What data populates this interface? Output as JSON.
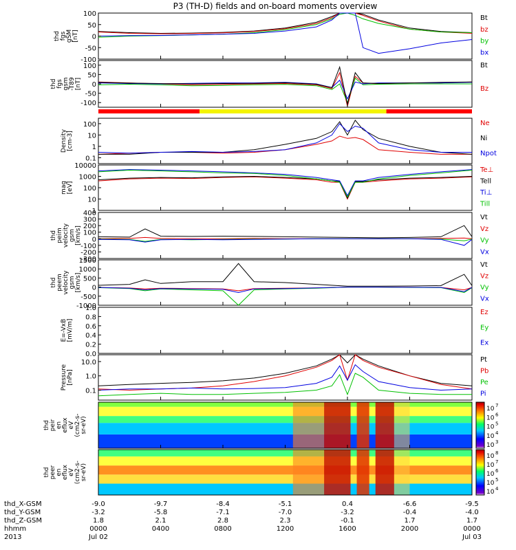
{
  "title": "P3 (TH-D) fields and on-board moments overview",
  "colors": {
    "black": "#000000",
    "red": "#e00000",
    "green": "#00c000",
    "blue": "#0000e0",
    "yellow": "#f4f400",
    "bar_red": "#ff0000"
  },
  "time_axis": {
    "rows": [
      {
        "label": "thd_X-GSM",
        "values": [
          "-9.0",
          "-9.7",
          "-8.4",
          "-5.1",
          "0.4",
          "-6.6",
          "-9.5"
        ]
      },
      {
        "label": "thd_Y-GSM",
        "values": [
          "-3.2",
          "-5.8",
          "-7.1",
          "-7.0",
          "-3.2",
          "-0.4",
          "-4.0"
        ]
      },
      {
        "label": "thd_Z-GSM",
        "values": [
          "1.8",
          "2.1",
          "2.8",
          "2.3",
          "-0.1",
          "1.7",
          "1.7"
        ]
      },
      {
        "label": "hhmm",
        "values": [
          "0000",
          "0400",
          "0800",
          "1200",
          "1600",
          "2000",
          "0000"
        ]
      },
      {
        "label": "2013",
        "values": [
          "Jul 02",
          "",
          "",
          "",
          "",
          "",
          "Jul 03"
        ]
      }
    ]
  },
  "chart_data": [
    {
      "type": "line",
      "panel": "fgs",
      "ylabel": [
        "thd",
        "fgs",
        "gSM",
        "[nT]"
      ],
      "yticks": [
        "100",
        "50",
        "0",
        "-50",
        "-100"
      ],
      "ylim": [
        -100,
        100
      ],
      "x": [
        0,
        2,
        4,
        6,
        8,
        10,
        12,
        14,
        15,
        15.5,
        16,
        16.5,
        17,
        18,
        20,
        22,
        24
      ],
      "series": [
        {
          "name": "Bt",
          "color": "#000000",
          "values": [
            20,
            15,
            12,
            13,
            16,
            22,
            35,
            60,
            85,
            100,
            100,
            100,
            95,
            70,
            35,
            20,
            15
          ]
        },
        {
          "name": "bz",
          "color": "#e00000",
          "values": [
            18,
            12,
            10,
            11,
            14,
            20,
            32,
            55,
            80,
            100,
            100,
            100,
            90,
            65,
            30,
            18,
            12
          ]
        },
        {
          "name": "by",
          "color": "#00c000",
          "values": [
            -5,
            0,
            2,
            5,
            8,
            15,
            28,
            50,
            75,
            95,
            100,
            90,
            75,
            55,
            30,
            18,
            15
          ]
        },
        {
          "name": "bx",
          "color": "#0000e0",
          "values": [
            0,
            2,
            3,
            5,
            8,
            12,
            22,
            40,
            70,
            100,
            100,
            100,
            -50,
            -75,
            -55,
            -30,
            -15
          ]
        }
      ],
      "legend": [
        {
          "label": "Bt",
          "color": "#000000"
        },
        {
          "label": "bz",
          "color": "#e00000"
        },
        {
          "label": "by",
          "color": "#00c000"
        },
        {
          "label": "bx",
          "color": "#0000e0"
        }
      ]
    },
    {
      "type": "line",
      "panel": "fgs-minus-T89",
      "ylabel": [
        "thd",
        "fgs",
        "gsm",
        "-T89",
        "[nT]"
      ],
      "yticks": [
        "100",
        "50",
        "0",
        "-50",
        "-100"
      ],
      "ylim": [
        -125,
        125
      ],
      "x": [
        0,
        2,
        4,
        6,
        8,
        10,
        12,
        14,
        15,
        15.5,
        16,
        16.5,
        17,
        18,
        20,
        22,
        24
      ],
      "series": [
        {
          "name": "Bz",
          "color": "#e00000",
          "values": [
            10,
            5,
            0,
            -5,
            -3,
            0,
            2,
            -5,
            -25,
            60,
            -120,
            40,
            5,
            0,
            5,
            5,
            10
          ]
        },
        {
          "name": "By",
          "color": "#00c000",
          "values": [
            -5,
            -2,
            -5,
            -10,
            -8,
            -5,
            -3,
            -10,
            -30,
            0,
            -100,
            30,
            -5,
            -2,
            0,
            0,
            0
          ]
        },
        {
          "name": "Bx",
          "color": "#0000e0",
          "values": [
            5,
            2,
            0,
            3,
            5,
            5,
            8,
            0,
            -20,
            20,
            -80,
            10,
            0,
            5,
            5,
            5,
            8
          ]
        },
        {
          "name": "Bt",
          "color": "#000000",
          "values": [
            8,
            4,
            2,
            0,
            2,
            3,
            6,
            -2,
            -20,
            90,
            -110,
            60,
            5,
            2,
            5,
            8,
            10
          ]
        }
      ],
      "legend": [
        {
          "label": "Bt",
          "color": "#000000"
        },
        {
          "label": "Bz",
          "color": "#e00000"
        }
      ]
    },
    {
      "type": "line",
      "panel": "density",
      "ylabel": [
        "Density",
        "[cm-3]"
      ],
      "yticks": [
        "100",
        "10",
        "1",
        "0.1"
      ],
      "ylim": [
        0.03,
        300
      ],
      "yscale": "log",
      "x": [
        0,
        2,
        4,
        6,
        8,
        10,
        12,
        14,
        15,
        15.5,
        16,
        16.5,
        17,
        18,
        20,
        22,
        24
      ],
      "series": [
        {
          "name": "Ne",
          "color": "#e00000",
          "values": [
            0.2,
            0.25,
            0.3,
            0.3,
            0.25,
            0.3,
            0.5,
            1.5,
            3,
            8,
            5,
            6,
            4,
            0.5,
            0.3,
            0.2,
            0.2
          ]
        },
        {
          "name": "Ni",
          "color": "#000000",
          "values": [
            0.2,
            0.2,
            0.3,
            0.3,
            0.3,
            0.5,
            1.5,
            5,
            20,
            150,
            10,
            200,
            30,
            5,
            1,
            0.3,
            0.2
          ]
        },
        {
          "name": "Npot",
          "color": "#0000e0",
          "values": [
            0.3,
            0.25,
            0.3,
            0.35,
            0.3,
            0.35,
            0.5,
            2,
            10,
            100,
            20,
            60,
            40,
            2,
            0.5,
            0.3,
            0.3
          ]
        }
      ],
      "legend": [
        {
          "label": "Ne",
          "color": "#e00000"
        },
        {
          "label": "Ni",
          "color": "#000000"
        },
        {
          "label": "Npot",
          "color": "#0000e0"
        }
      ]
    },
    {
      "type": "line",
      "panel": "temperature",
      "ylabel": [
        "mag",
        "[eV]"
      ],
      "yticks": [
        "10000",
        "1000",
        "100",
        "10",
        "1"
      ],
      "ylim": [
        1,
        10000
      ],
      "yscale": "log",
      "x": [
        0,
        2,
        4,
        6,
        8,
        10,
        12,
        14,
        15,
        15.5,
        16,
        16.5,
        17,
        18,
        20,
        22,
        24
      ],
      "series": [
        {
          "name": "Te⊥",
          "color": "#e00000",
          "values": [
            400,
            600,
            700,
            650,
            800,
            900,
            700,
            500,
            300,
            300,
            10,
            300,
            300,
            400,
            600,
            700,
            900
          ]
        },
        {
          "name": "Te||",
          "color": "#000000",
          "values": [
            500,
            700,
            800,
            750,
            900,
            1000,
            800,
            600,
            400,
            350,
            12,
            350,
            350,
            500,
            700,
            800,
            1000
          ]
        },
        {
          "name": "Ti⊥",
          "color": "#0000e0",
          "values": [
            3000,
            4000,
            3500,
            3000,
            2500,
            2000,
            1500,
            800,
            500,
            400,
            20,
            400,
            400,
            800,
            1500,
            2500,
            4000
          ]
        },
        {
          "name": "Ti||",
          "color": "#00c000",
          "values": [
            2500,
            3500,
            3000,
            2500,
            2000,
            1800,
            1200,
            600,
            400,
            300,
            15,
            300,
            300,
            600,
            1200,
            2000,
            3500
          ]
        }
      ],
      "legend": [
        {
          "label": "Te⊥",
          "color": "#e00000"
        },
        {
          "label": "Tell",
          "color": "#000000"
        },
        {
          "label": "Ti⊥",
          "color": "#0000e0"
        },
        {
          "label": "Till",
          "color": "#00c000"
        }
      ]
    },
    {
      "type": "line",
      "panel": "peim-velocity",
      "ylabel": [
        "thd",
        "peim",
        "velocity",
        "gsm",
        "[km/s]"
      ],
      "yticks": [
        "400",
        "300",
        "200",
        "100",
        "0",
        "-100",
        "-200",
        "-300"
      ],
      "ylim": [
        -300,
        400
      ],
      "x": [
        0,
        2,
        3,
        4,
        6,
        8,
        10,
        12,
        14,
        16,
        18,
        20,
        22,
        23.5,
        24
      ],
      "series": [
        {
          "name": "Vt",
          "color": "#000000",
          "values": [
            30,
            25,
            150,
            40,
            35,
            40,
            35,
            30,
            25,
            20,
            15,
            20,
            30,
            200,
            30
          ]
        },
        {
          "name": "Vz",
          "color": "#e00000",
          "values": [
            0,
            5,
            20,
            5,
            0,
            0,
            5,
            0,
            0,
            0,
            0,
            0,
            5,
            10,
            0
          ]
        },
        {
          "name": "Vy",
          "color": "#00c000",
          "values": [
            -5,
            -10,
            -40,
            -10,
            -15,
            -10,
            -5,
            -5,
            0,
            0,
            0,
            0,
            -5,
            -30,
            -5
          ]
        },
        {
          "name": "Vx",
          "color": "#0000e0",
          "values": [
            -10,
            -15,
            -50,
            -15,
            -10,
            -15,
            -10,
            -5,
            0,
            0,
            0,
            0,
            -10,
            -100,
            -10
          ]
        }
      ],
      "legend": [
        {
          "label": "Vt",
          "color": "#000000"
        },
        {
          "label": "Vz",
          "color": "#e00000"
        },
        {
          "label": "Vy",
          "color": "#00c000"
        },
        {
          "label": "Vx",
          "color": "#0000e0"
        }
      ]
    },
    {
      "type": "line",
      "panel": "peem-velocity",
      "ylabel": [
        "thd",
        "peem",
        "velocity",
        "gsm",
        "[km/s]"
      ],
      "yticks": [
        "1500",
        "1000",
        "500",
        "0",
        "-500",
        "-1000"
      ],
      "ylim": [
        -1000,
        1500
      ],
      "x": [
        0,
        2,
        3,
        4,
        6,
        8,
        9,
        10,
        12,
        14,
        16,
        18,
        20,
        22,
        23.5,
        24
      ],
      "series": [
        {
          "name": "Vt",
          "color": "#000000",
          "values": [
            100,
            150,
            400,
            200,
            300,
            300,
            1300,
            300,
            250,
            150,
            50,
            50,
            60,
            80,
            700,
            80
          ]
        },
        {
          "name": "Vz",
          "color": "#e00000",
          "values": [
            -20,
            -50,
            -100,
            -60,
            -80,
            -100,
            -200,
            -80,
            -60,
            -40,
            0,
            0,
            -10,
            -20,
            -150,
            -20
          ]
        },
        {
          "name": "Vy",
          "color": "#00c000",
          "values": [
            -30,
            -80,
            -200,
            -100,
            -150,
            -200,
            -1000,
            -150,
            -100,
            -60,
            0,
            0,
            -20,
            -30,
            -300,
            -30
          ]
        },
        {
          "name": "Vx",
          "color": "#0000e0",
          "values": [
            -20,
            -60,
            -150,
            -80,
            -100,
            -120,
            -300,
            -100,
            -80,
            -40,
            0,
            0,
            -10,
            -20,
            -250,
            -20
          ]
        }
      ],
      "legend": [
        {
          "label": "Vt",
          "color": "#000000"
        },
        {
          "label": "Vz",
          "color": "#e00000"
        },
        {
          "label": "Vy",
          "color": "#00c000"
        },
        {
          "label": "Vx",
          "color": "#0000e0"
        }
      ]
    },
    {
      "type": "line",
      "panel": "efield",
      "ylabel": [
        "E=-VxB",
        "[mV/m]"
      ],
      "yticks": [
        "1.0",
        "0.8",
        "0.6",
        "0.4",
        "0.2",
        "0.0"
      ],
      "ylim": [
        0,
        1
      ],
      "x": [],
      "series": [],
      "legend": [
        {
          "label": "Ez",
          "color": "#e00000"
        },
        {
          "label": "Ey",
          "color": "#00c000"
        },
        {
          "label": "Ex",
          "color": "#0000e0"
        }
      ]
    },
    {
      "type": "line",
      "panel": "pressure",
      "ylabel": [
        "Pressure",
        "[nPa]"
      ],
      "yticks": [
        "10.0",
        "1.0",
        "0.1"
      ],
      "ylim": [
        0.02,
        30
      ],
      "yscale": "log",
      "x": [
        0,
        2,
        4,
        6,
        8,
        10,
        12,
        14,
        15,
        15.5,
        16,
        16.5,
        17,
        18,
        20,
        22,
        24
      ],
      "series": [
        {
          "name": "Pt",
          "color": "#000000",
          "values": [
            0.2,
            0.25,
            0.3,
            0.35,
            0.45,
            0.7,
            1.5,
            5,
            15,
            30,
            8,
            30,
            15,
            5,
            1,
            0.3,
            0.2
          ]
        },
        {
          "name": "Pb",
          "color": "#e00000",
          "values": [
            0.12,
            0.1,
            0.12,
            0.14,
            0.2,
            0.4,
            1,
            4,
            12,
            30,
            0.5,
            30,
            12,
            4,
            1,
            0.25,
            0.12
          ]
        },
        {
          "name": "Pe",
          "color": "#00c000",
          "values": [
            0.04,
            0.05,
            0.06,
            0.05,
            0.05,
            0.06,
            0.07,
            0.1,
            0.2,
            1.2,
            0.05,
            1.5,
            0.8,
            0.1,
            0.06,
            0.05,
            0.05
          ]
        },
        {
          "name": "Pi",
          "color": "#0000e0",
          "values": [
            0.1,
            0.12,
            0.12,
            0.14,
            0.12,
            0.13,
            0.15,
            0.3,
            0.8,
            5,
            0.5,
            6,
            2,
            0.4,
            0.15,
            0.1,
            0.12
          ]
        }
      ],
      "legend": [
        {
          "label": "Pt",
          "color": "#000000"
        },
        {
          "label": "Pb",
          "color": "#e00000"
        },
        {
          "label": "Pe",
          "color": "#00c000"
        },
        {
          "label": "Pi",
          "color": "#0000e0"
        }
      ]
    },
    {
      "type": "heatmap",
      "panel": "peir-spectrogram",
      "ylabel": [
        "thd",
        "peir",
        "en",
        "eflux",
        "eV",
        "(cm2-s-",
        "sr-eV)"
      ],
      "yticks": [
        "10000",
        "1000",
        "100",
        "10"
      ],
      "yscale": "log",
      "colorbar_labels": [
        "10",
        "10",
        "10",
        "10",
        "10"
      ],
      "colorbar_exponents": [
        "7",
        "6",
        "5",
        "4",
        "3"
      ]
    },
    {
      "type": "heatmap",
      "panel": "peer-spectrogram",
      "ylabel": [
        "thd",
        "peer",
        "en",
        "eflux",
        "eV",
        "(cm2-s-",
        "sr-eV)"
      ],
      "yticks": [
        "10000",
        "1000",
        "100",
        "10"
      ],
      "yscale": "log",
      "colorbar_labels": [
        "10",
        "10",
        "10",
        "10",
        "10"
      ],
      "colorbar_exponents": [
        "8",
        "7",
        "6",
        "5",
        "4"
      ]
    }
  ]
}
